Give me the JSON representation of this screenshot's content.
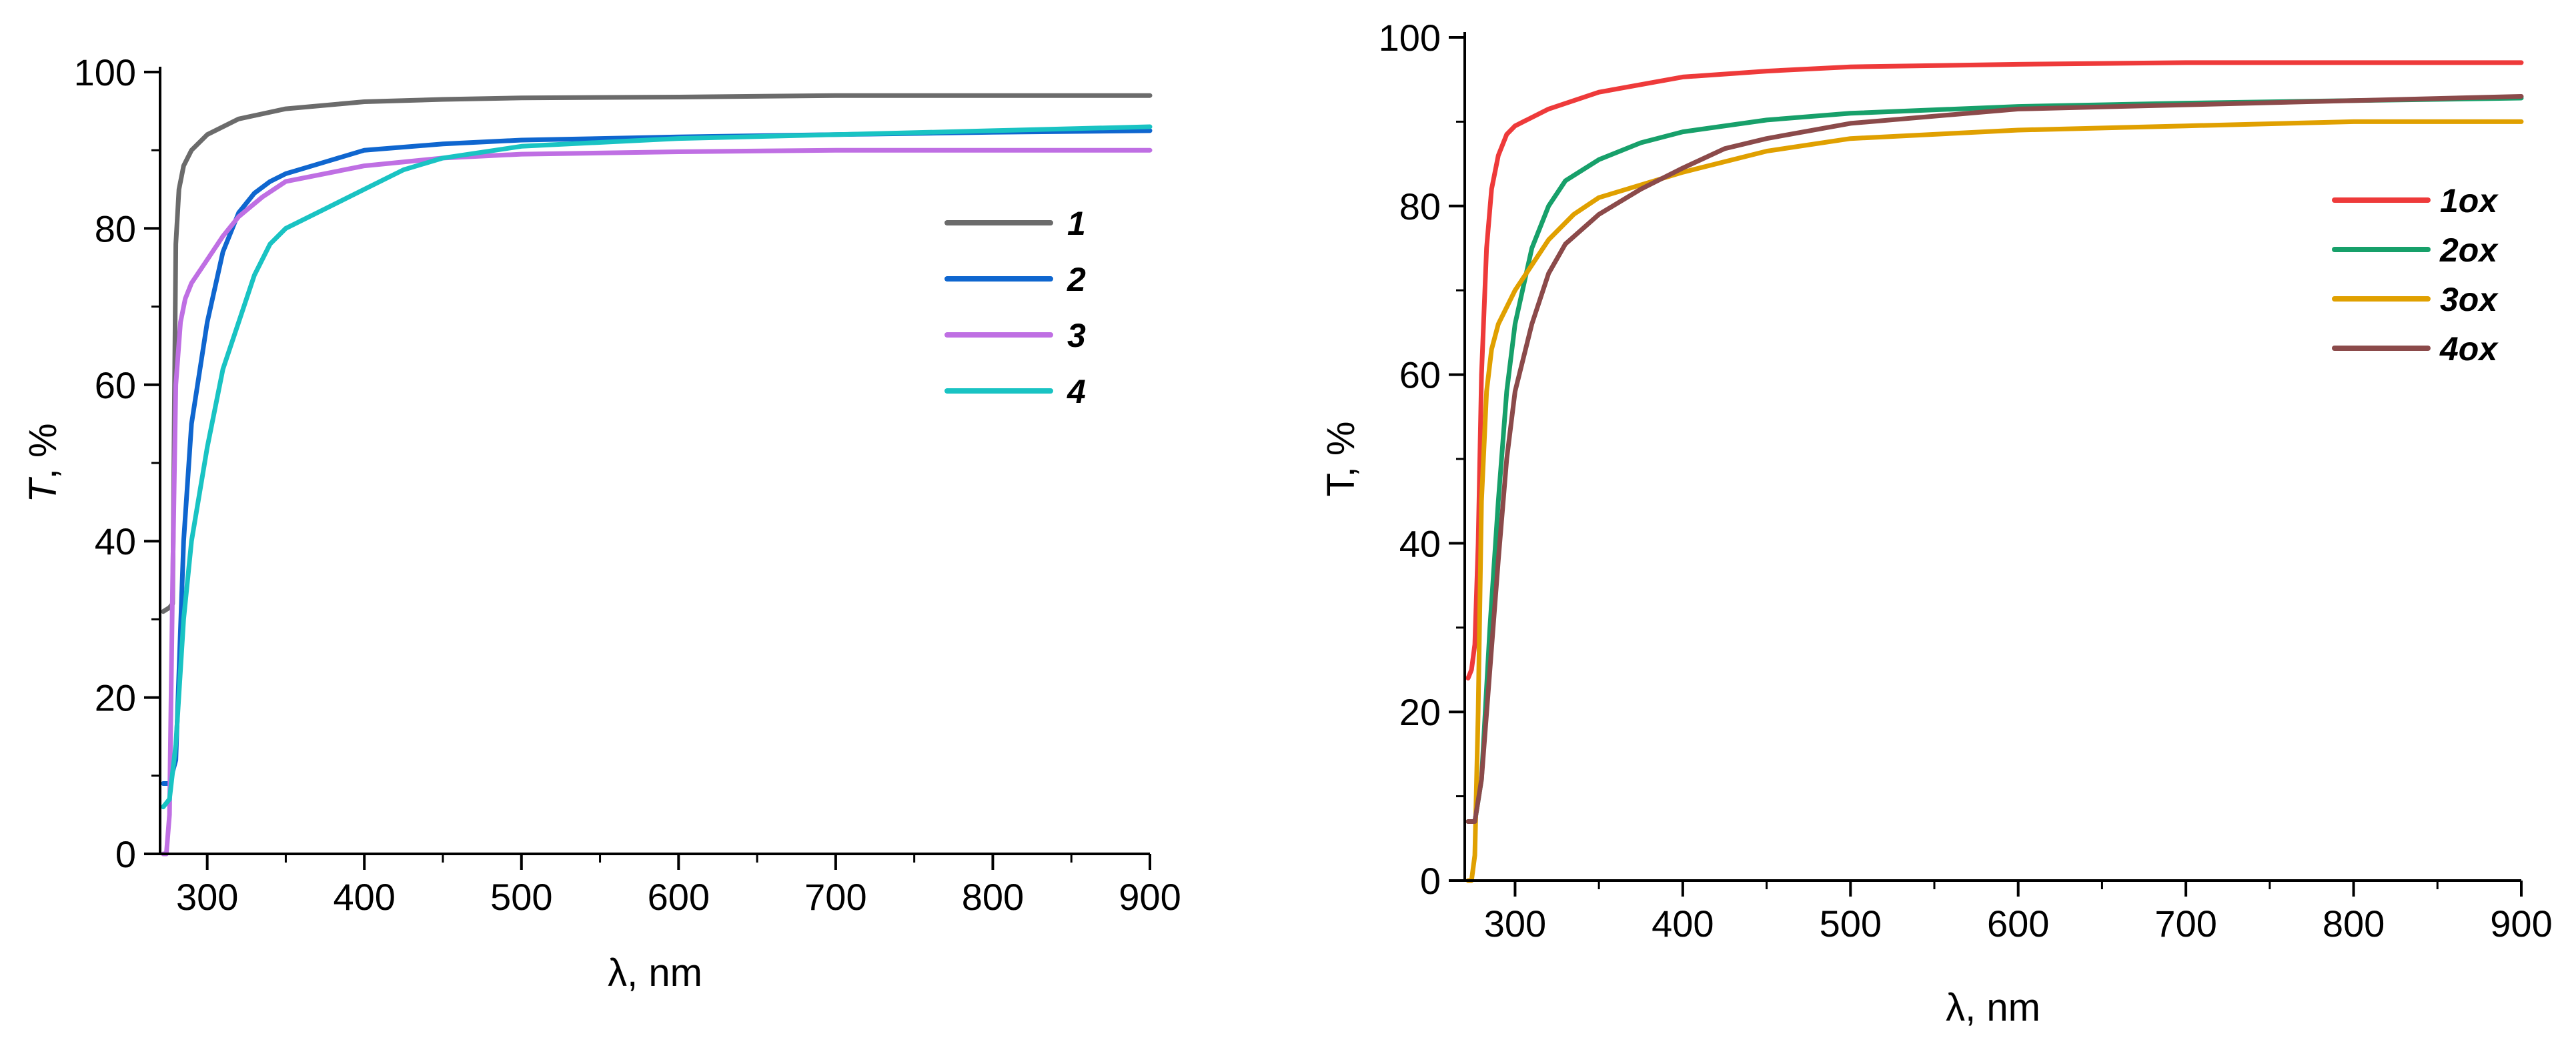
{
  "chart_data": [
    {
      "type": "line",
      "id": "left",
      "xlabel": "λ, nm",
      "ylabel_italic": "T",
      "ylabel_rest": ", %",
      "xlim": [
        270,
        900
      ],
      "ylim": [
        0,
        100
      ],
      "x_ticks": [
        "300",
        "400",
        "500",
        "600",
        "700",
        "800",
        "900"
      ],
      "y_ticks": [
        "0",
        "20",
        "40",
        "60",
        "80",
        "100"
      ],
      "legend_position": "right",
      "series": [
        {
          "name": "1",
          "color": "#6b6b6b",
          "x": [
            272,
            276,
            278,
            279,
            280,
            282,
            285,
            290,
            300,
            320,
            350,
            400,
            450,
            500,
            600,
            700,
            800,
            900
          ],
          "y": [
            31,
            31.5,
            32,
            55,
            78,
            85,
            88,
            90,
            92,
            94,
            95.3,
            96.2,
            96.5,
            96.7,
            96.8,
            97,
            97,
            97
          ]
        },
        {
          "name": "2",
          "color": "#0f66cf",
          "x": [
            272,
            276,
            280,
            285,
            290,
            300,
            310,
            320,
            330,
            340,
            350,
            375,
            400,
            450,
            500,
            600,
            700,
            800,
            900
          ],
          "y": [
            9,
            9,
            12,
            40,
            55,
            68,
            77,
            82,
            84.5,
            86,
            87,
            88.5,
            90,
            90.8,
            91.3,
            91.7,
            92,
            92.3,
            92.5
          ]
        },
        {
          "name": "3",
          "color": "#bf6fe3",
          "x": [
            272,
            274,
            276,
            278,
            280,
            283,
            286,
            290,
            300,
            310,
            320,
            335,
            350,
            400,
            450,
            500,
            600,
            700,
            800,
            900
          ],
          "y": [
            0,
            0,
            5,
            35,
            60,
            68,
            71,
            73,
            76,
            79,
            81.5,
            84,
            86,
            88,
            89,
            89.5,
            89.8,
            90,
            90,
            90
          ]
        },
        {
          "name": "4",
          "color": "#19c3c3",
          "x": [
            272,
            276,
            280,
            285,
            290,
            300,
            310,
            320,
            330,
            340,
            350,
            375,
            400,
            425,
            450,
            500,
            600,
            700,
            800,
            900
          ],
          "y": [
            6,
            7,
            14,
            30,
            40,
            52,
            62,
            68,
            74,
            78,
            80,
            82.5,
            85,
            87.5,
            89,
            90.5,
            91.5,
            92,
            92.5,
            93
          ]
        }
      ]
    },
    {
      "type": "line",
      "id": "right",
      "xlabel": "λ, nm",
      "ylabel_italic": "",
      "ylabel_rest": "T, %",
      "xlim": [
        270,
        900
      ],
      "ylim": [
        0,
        100
      ],
      "x_ticks": [
        "300",
        "400",
        "500",
        "600",
        "700",
        "800",
        "900"
      ],
      "y_ticks": [
        "0",
        "20",
        "40",
        "60",
        "80",
        "100"
      ],
      "legend_position": "top-right",
      "series": [
        {
          "name": "1ox",
          "color": "#ee3a3a",
          "x": [
            272,
            274,
            276,
            278,
            280,
            283,
            286,
            290,
            295,
            300,
            320,
            350,
            400,
            450,
            500,
            600,
            700,
            800,
            900
          ],
          "y": [
            24,
            25,
            28,
            40,
            60,
            75,
            82,
            86,
            88.5,
            89.5,
            91.5,
            93.5,
            95.3,
            96,
            96.5,
            96.8,
            97,
            97,
            97
          ]
        },
        {
          "name": "2ox",
          "color": "#17a06a",
          "x": [
            272,
            276,
            280,
            285,
            290,
            295,
            300,
            310,
            320,
            330,
            350,
            375,
            400,
            450,
            500,
            600,
            700,
            800,
            900
          ],
          "y": [
            7,
            7,
            12,
            30,
            45,
            58,
            66,
            75,
            80,
            83,
            85.5,
            87.5,
            88.8,
            90.2,
            91,
            91.8,
            92.2,
            92.5,
            92.8
          ]
        },
        {
          "name": "3ox",
          "color": "#e0a000",
          "x": [
            272,
            274,
            276,
            278,
            280,
            283,
            286,
            290,
            300,
            310,
            320,
            335,
            350,
            375,
            400,
            450,
            500,
            600,
            700,
            800,
            900
          ],
          "y": [
            0,
            0,
            3,
            20,
            45,
            58,
            63,
            66,
            70,
            73,
            76,
            79,
            81,
            82.5,
            84,
            86.5,
            88,
            89,
            89.5,
            90,
            90
          ]
        },
        {
          "name": "4ox",
          "color": "#8b4a4a",
          "x": [
            272,
            276,
            280,
            285,
            290,
            295,
            300,
            310,
            320,
            330,
            350,
            375,
            400,
            425,
            450,
            500,
            600,
            700,
            800,
            900
          ],
          "y": [
            7,
            7,
            12,
            25,
            38,
            50,
            58,
            66,
            72,
            75.5,
            79,
            82,
            84.5,
            86.8,
            88,
            89.8,
            91.5,
            92,
            92.5,
            93
          ]
        }
      ]
    }
  ]
}
